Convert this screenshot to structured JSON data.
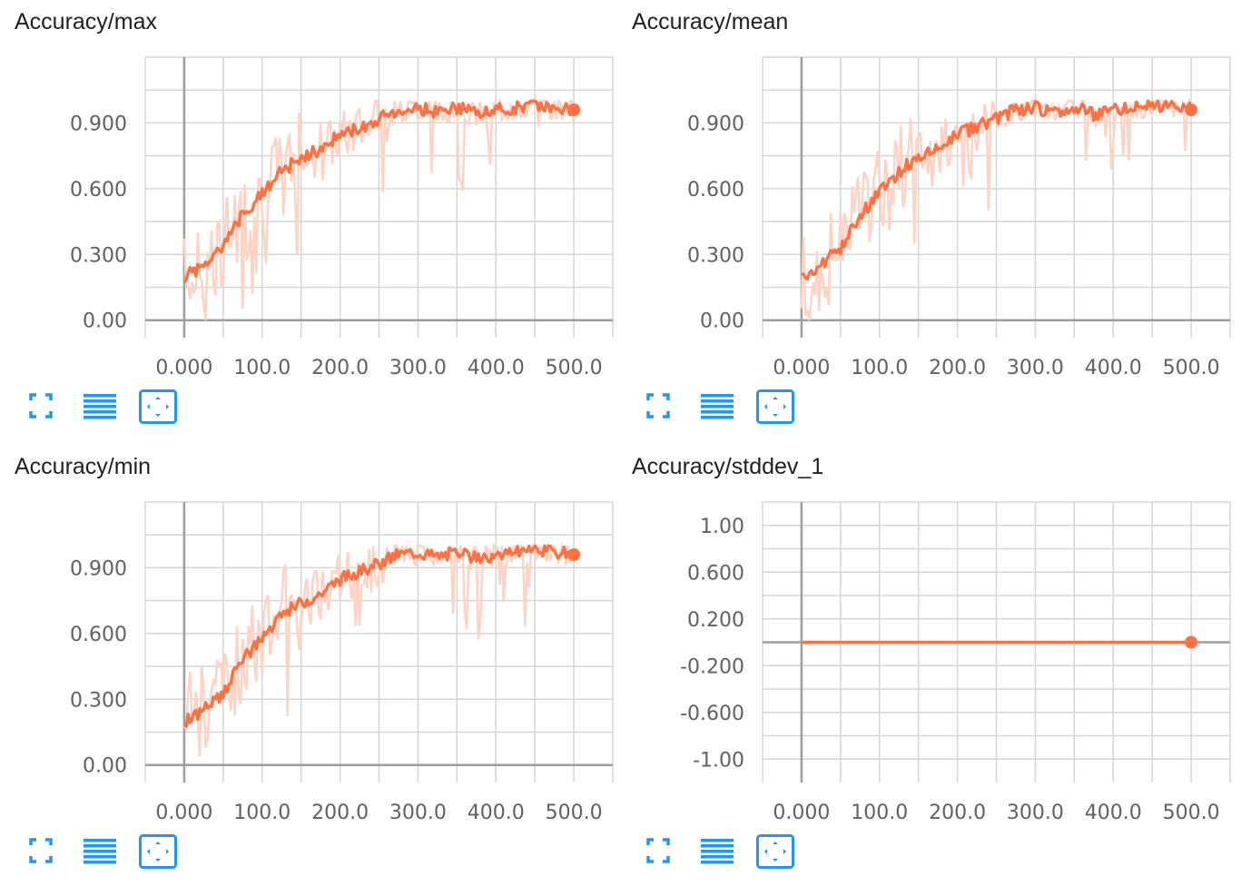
{
  "colors": {
    "line": "#ff7043",
    "line_raw": "#ffd3c4",
    "grid": "#d6d6d6",
    "axis": "#9e9e9e",
    "icon": "#2196f3"
  },
  "icons": [
    "fullscreen-icon",
    "data-table-icon",
    "fit-domain-icon"
  ],
  "chart_data": [
    {
      "type": "line",
      "title": "Accuracy/max",
      "xlim": [
        -50,
        550
      ],
      "ylim": [
        -0.08,
        1.2
      ],
      "x_ticks": [
        0,
        100,
        200,
        300,
        400,
        500
      ],
      "x_tick_labels": [
        "0.000",
        "100.0",
        "200.0",
        "300.0",
        "400.0",
        "500.0"
      ],
      "y_ticks": [
        0,
        0.3,
        0.6,
        0.9
      ],
      "y_tick_labels": [
        "0.00",
        "0.300",
        "0.600",
        "0.900"
      ],
      "series": [
        {
          "x": [
            0,
            25,
            50,
            75,
            100,
            125,
            150,
            175,
            200,
            225,
            250,
            275,
            300,
            325,
            350,
            375,
            400,
            425,
            450,
            475,
            500
          ],
          "y": [
            0.2,
            0.25,
            0.33,
            0.48,
            0.58,
            0.68,
            0.74,
            0.78,
            0.85,
            0.88,
            0.92,
            0.96,
            0.97,
            0.95,
            0.97,
            0.94,
            0.96,
            0.97,
            0.99,
            0.97,
            0.96
          ]
        }
      ]
    },
    {
      "type": "line",
      "title": "Accuracy/mean",
      "xlim": [
        -50,
        550
      ],
      "ylim": [
        -0.08,
        1.2
      ],
      "x_ticks": [
        0,
        100,
        200,
        300,
        400,
        500
      ],
      "x_tick_labels": [
        "0.000",
        "100.0",
        "200.0",
        "300.0",
        "400.0",
        "500.0"
      ],
      "y_ticks": [
        0,
        0.3,
        0.6,
        0.9
      ],
      "y_tick_labels": [
        "0.00",
        "0.300",
        "0.600",
        "0.900"
      ],
      "series": [
        {
          "x": [
            0,
            25,
            50,
            75,
            100,
            125,
            150,
            175,
            200,
            225,
            250,
            275,
            300,
            325,
            350,
            375,
            400,
            425,
            450,
            475,
            500
          ],
          "y": [
            0.2,
            0.25,
            0.33,
            0.48,
            0.58,
            0.68,
            0.74,
            0.78,
            0.85,
            0.88,
            0.92,
            0.96,
            0.97,
            0.95,
            0.97,
            0.94,
            0.96,
            0.97,
            0.99,
            0.97,
            0.96
          ]
        }
      ]
    },
    {
      "type": "line",
      "title": "Accuracy/min",
      "xlim": [
        -50,
        550
      ],
      "ylim": [
        -0.08,
        1.2
      ],
      "x_ticks": [
        0,
        100,
        200,
        300,
        400,
        500
      ],
      "x_tick_labels": [
        "0.000",
        "100.0",
        "200.0",
        "300.0",
        "400.0",
        "500.0"
      ],
      "y_ticks": [
        0,
        0.3,
        0.6,
        0.9
      ],
      "y_tick_labels": [
        "0.00",
        "0.300",
        "0.600",
        "0.900"
      ],
      "series": [
        {
          "x": [
            0,
            25,
            50,
            75,
            100,
            125,
            150,
            175,
            200,
            225,
            250,
            275,
            300,
            325,
            350,
            375,
            400,
            425,
            450,
            475,
            500
          ],
          "y": [
            0.2,
            0.25,
            0.33,
            0.48,
            0.58,
            0.68,
            0.74,
            0.78,
            0.85,
            0.88,
            0.92,
            0.96,
            0.97,
            0.95,
            0.97,
            0.94,
            0.96,
            0.97,
            0.99,
            0.97,
            0.96
          ]
        }
      ]
    },
    {
      "type": "line",
      "title": "Accuracy/stddev_1",
      "xlim": [
        -50,
        550
      ],
      "ylim": [
        -1.2,
        1.2
      ],
      "x_ticks": [
        0,
        100,
        200,
        300,
        400,
        500
      ],
      "x_tick_labels": [
        "0.000",
        "100.0",
        "200.0",
        "300.0",
        "400.0",
        "500.0"
      ],
      "y_ticks": [
        1,
        0.6,
        0.2,
        -0.2,
        -0.6,
        -1
      ],
      "y_tick_labels": [
        "1.00",
        "0.600",
        "0.200",
        "-0.200",
        "-0.600",
        "-1.00"
      ],
      "series": [
        {
          "x": [
            0,
            500
          ],
          "y": [
            0,
            0
          ]
        }
      ]
    }
  ]
}
